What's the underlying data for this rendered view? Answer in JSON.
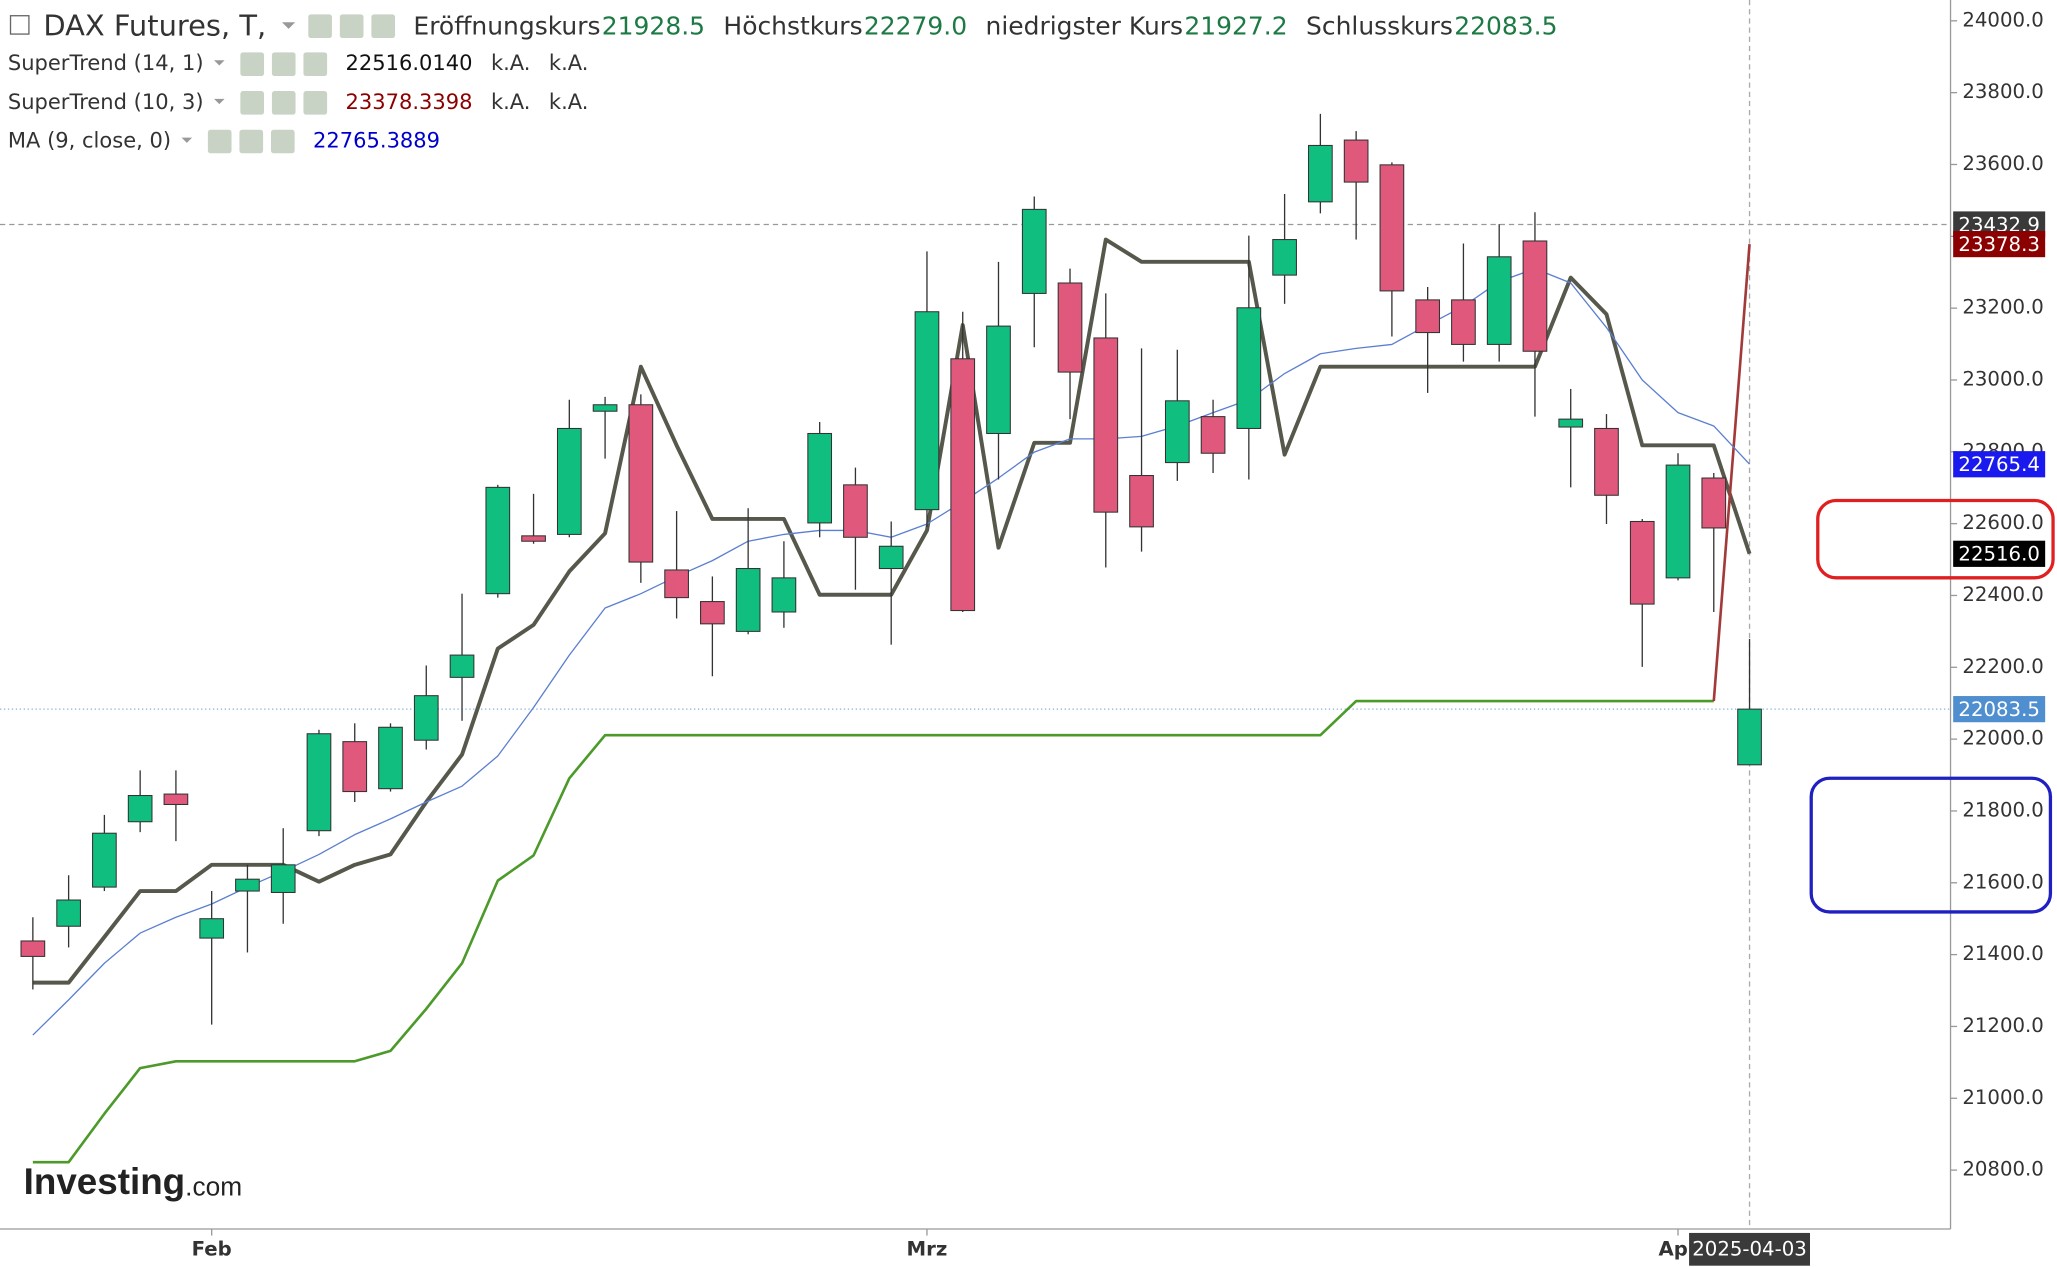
{
  "chart_data": {
    "type": "candlestick",
    "title": "DAX Futures, T,",
    "ohlc_legend": [
      {
        "label": "Eröffnungskurs",
        "value": "21928.5"
      },
      {
        "label": "Höchstkurs",
        "value": "22279.0"
      },
      {
        "label": "niedrigster Kurs",
        "value": "21927.2"
      },
      {
        "label": "Schlusskurs",
        "value": "22083.5"
      }
    ],
    "categories": [
      null,
      null,
      null,
      null,
      null,
      "Feb",
      null,
      null,
      null,
      null,
      null,
      null,
      null,
      null,
      null,
      null,
      null,
      null,
      null,
      null,
      null,
      null,
      null,
      null,
      null,
      "Mrz",
      null,
      null,
      null,
      null,
      null,
      null,
      null,
      null,
      null,
      null,
      null,
      null,
      null,
      null,
      null,
      null,
      null,
      null,
      null,
      null,
      "Apr",
      null,
      null
    ],
    "open": [
      21438,
      21479,
      21588,
      21770,
      21847,
      21446,
      21577,
      21573,
      21745,
      21993,
      21862,
      21997,
      22172,
      22405,
      22566,
      22570,
      22913,
      22931,
      22471,
      22383,
      22300,
      22354,
      22602,
      22708,
      22475,
      22639,
      23059,
      22851,
      23241,
      23270,
      23117,
      22734,
      22770,
      22898,
      22865,
      23292,
      23496,
      23668,
      23599,
      23223,
      23223,
      23099,
      23387,
      22869,
      22865,
      22606,
      22449,
      22727,
      21928.5
    ],
    "high": [
      21504,
      21621,
      21789,
      21913,
      21913,
      21577,
      21650,
      21752,
      22026,
      22044,
      22044,
      22205,
      22405,
      22708,
      22683,
      22945,
      22953,
      22960,
      22635,
      22453,
      22643,
      22551,
      22883,
      22756,
      22606,
      23358,
      23190,
      23329,
      23511,
      23310,
      23241,
      23088,
      23084,
      22945,
      23402,
      23518,
      23741,
      23693,
      23606,
      23259,
      23380,
      23434,
      23467,
      22975,
      22905,
      22613,
      22796,
      22741,
      22279.0
    ],
    "low": [
      21303,
      21420,
      21577,
      21741,
      21716,
      21205,
      21406,
      21486,
      21730,
      21825,
      21854,
      21971,
      22051,
      22394,
      22544,
      22562,
      22781,
      22435,
      22336,
      22175,
      22292,
      22310,
      22562,
      22416,
      22263,
      22591,
      22354,
      22723,
      23091,
      22891,
      22478,
      22522,
      22719,
      22741,
      22723,
      23212,
      23464,
      23391,
      23121,
      22964,
      23051,
      23051,
      22898,
      22701,
      22599,
      22201,
      22442,
      22354,
      21927.2
    ],
    "close": [
      21395,
      21552,
      21738,
      21843,
      21818,
      21500,
      21610,
      21650,
      22015,
      21854,
      22033,
      22121,
      22234,
      22701,
      22551,
      22865,
      22931,
      22493,
      22394,
      22321,
      22475,
      22449,
      22851,
      22562,
      22537,
      23190,
      22358,
      23150,
      23475,
      23022,
      22632,
      22591,
      22942,
      22796,
      23201,
      23391,
      23653,
      23551,
      23248,
      23132,
      23099,
      23343,
      23080,
      22891,
      22679,
      22376,
      22763,
      22588,
      22083.5
    ],
    "up_color": "#10bf80",
    "down_color": "#e0587b",
    "close_tag": "22083.5",
    "close_tag_color": "#4f8fcf",
    "overlays": [
      {
        "name": "SuperTrend (14, 1)",
        "color": "#55584a",
        "width": 3,
        "legend_value": "22516.0140",
        "legend_value_color": "#111111",
        "legend_extra": [
          "k.A.",
          "k.A."
        ],
        "tag_label": "22516.0",
        "tag_color": "#000000",
        "values": [
          21322,
          21322,
          21449,
          21577,
          21577,
          21650,
          21650,
          21650,
          21603,
          21650,
          21679,
          21825,
          21957,
          22252,
          22318,
          22467,
          22573,
          23037,
          22818,
          22613,
          22613,
          22613,
          22402,
          22402,
          22402,
          22581,
          23153,
          22533,
          22825,
          22825,
          23391,
          23329,
          23329,
          23329,
          23329,
          22792,
          23037,
          23037,
          23037,
          23037,
          23037,
          23037,
          23037,
          23285,
          23183,
          22818,
          22818,
          22818,
          22516.014
        ]
      },
      {
        "name": "SuperTrend (10, 3)",
        "color": "#4c9a2a",
        "last_segment_color": "#a33a3a",
        "width": 2,
        "legend_value": "23378.3398",
        "legend_value_color": "#8b0000",
        "legend_extra": [
          "k.A.",
          "k.A."
        ],
        "tag_label": "23378.3",
        "tag_color": "#8b0000",
        "values": [
          20822,
          20822,
          20957,
          21084,
          21103,
          21103,
          21103,
          21103,
          21103,
          21103,
          21132,
          21249,
          21376,
          21606,
          21676,
          21891,
          22011,
          22011,
          22011,
          22011,
          22011,
          22011,
          22011,
          22011,
          22011,
          22011,
          22011,
          22011,
          22011,
          22011,
          22011,
          22011,
          22011,
          22011,
          22011,
          22011,
          22011,
          22106,
          22106,
          22106,
          22106,
          22106,
          22106,
          22106,
          22106,
          22106,
          22106,
          22106,
          23378.3398
        ]
      },
      {
        "name": "MA (9, close, 0)",
        "color": "#5b7fd0",
        "width": 1,
        "legend_value": "22765.3889",
        "legend_value_color": "#0000cc",
        "legend_extra": [],
        "tag_label": "22765.4",
        "tag_color": "#1a1aee",
        "values": [
          21176,
          21274,
          21376,
          21460,
          21504,
          21541,
          21588,
          21632,
          21679,
          21734,
          21778,
          21825,
          21869,
          21953,
          22088,
          22234,
          22365,
          22405,
          22453,
          22497,
          22551,
          22570,
          22581,
          22581,
          22562,
          22599,
          22661,
          22727,
          22799,
          22836,
          22836,
          22843,
          22872,
          22909,
          22945,
          23018,
          23073,
          23088,
          23099,
          23153,
          23205,
          23274,
          23310,
          23270,
          23146,
          23000,
          22909,
          22872,
          22765.3889
        ]
      }
    ],
    "ylim": [
      20636,
      24058
    ],
    "yticks": [
      {
        "value": 20800,
        "label": "20800.0"
      },
      {
        "value": 21000,
        "label": "21000.0"
      },
      {
        "value": 21200,
        "label": "21200.0"
      },
      {
        "value": 21400,
        "label": "21400.0"
      },
      {
        "value": 21600,
        "label": "21600.0"
      },
      {
        "value": 21800,
        "label": "21800.0"
      },
      {
        "value": 22000,
        "label": "22000.0"
      },
      {
        "value": 22200,
        "label": "22200.0"
      },
      {
        "value": 22400,
        "label": "22400.0"
      },
      {
        "value": 22600,
        "label": "22600.0"
      },
      {
        "value": 22800,
        "label": "22800.0"
      },
      {
        "value": 23000,
        "label": "23000.0"
      },
      {
        "value": 23200,
        "label": "23200.0"
      },
      {
        "value": 23400,
        "label": "23400.0"
      },
      {
        "value": 23600,
        "label": "23600.0"
      },
      {
        "value": 23800,
        "label": "23800.0"
      },
      {
        "value": 24000,
        "label": "24000.0"
      }
    ],
    "crosshair": {
      "y": 23432.9,
      "x_label": "2025-04-03"
    },
    "watermark": [
      "Investing",
      ".com"
    ]
  }
}
